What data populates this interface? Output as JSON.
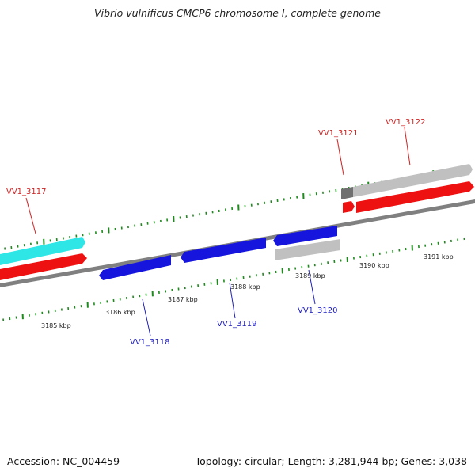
{
  "title": "Vibrio vulnificus CMCP6 chromosome I, complete genome",
  "footer": {
    "accession": "Accession: NC_004459",
    "summary": "Topology: circular; Length: 3,281,944 bp; Genes: 3,038"
  },
  "colors": {
    "backbone": "#808080",
    "tick": "#1e8a1e",
    "forward_label": "#d02020",
    "reverse_label": "#2020c0",
    "red_gene": "#ee1111",
    "blue_gene": "#1515dd",
    "cyan_gene": "#2ee6e6",
    "gray_gene": "#c0c0c0",
    "dark_gray_gene": "#707070"
  },
  "kbp_labels": [
    "3185 kbp",
    "3186 kbp",
    "3187 kbp",
    "3188 kbp",
    "3189 kbp",
    "3190 kbp",
    "3191 kbp"
  ],
  "gene_labels": {
    "forward": [
      "VV1_3117",
      "VV1_3121",
      "VV1_3122"
    ],
    "reverse": [
      "VV1_3118",
      "VV1_3119",
      "VV1_3120"
    ]
  }
}
